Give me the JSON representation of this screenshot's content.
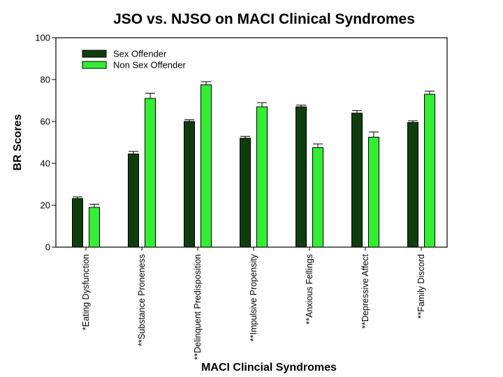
{
  "chart_data": {
    "type": "bar",
    "title": "JSO vs. NJSO on MACI Clinical Syndromes",
    "xlabel": "MACI Clincial Syndromes",
    "ylabel": "BR Scores",
    "ylim": [
      0,
      100
    ],
    "yticks": [
      0,
      20,
      40,
      60,
      80,
      100
    ],
    "legend_position": "top-left",
    "categories": [
      "*Eating Dysfunction",
      "**Substance Proneness",
      "**Delinquent Predisposition",
      "**Impulsive Propensity",
      "**Anxious Fellings",
      "**Depressive Affect",
      "**Family Discord"
    ],
    "series": [
      {
        "name": "Sex Offender",
        "color": "#0f3d0f",
        "values": [
          23.2,
          44.5,
          60.0,
          52.0,
          67.0,
          64.0,
          59.5
        ],
        "errors": [
          0.8,
          1.2,
          0.8,
          0.9,
          0.8,
          1.2,
          0.8
        ]
      },
      {
        "name": "Non Sex Offender",
        "color": "#33ee33",
        "values": [
          19.0,
          71.0,
          77.5,
          67.0,
          47.5,
          52.5,
          73.0
        ],
        "errors": [
          1.5,
          2.5,
          1.5,
          2.0,
          1.8,
          2.5,
          1.5
        ]
      }
    ]
  }
}
